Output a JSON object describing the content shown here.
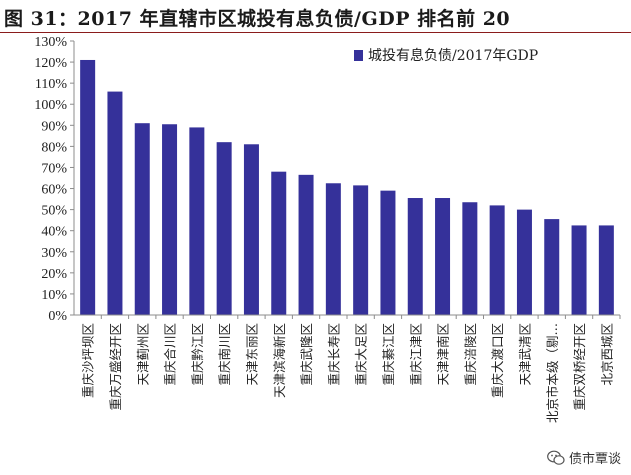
{
  "figure_title": "图 31：2017 年直辖市区城投有息负债/GDP 排名前 20",
  "watermark": {
    "text": "债市覃谈",
    "icon": "wechat-icon"
  },
  "chart_data": {
    "type": "bar",
    "title": "图 31：2017 年直辖市区城投有息负债/GDP 排名前 20",
    "xlabel": "",
    "ylabel": "",
    "ylim": [
      0,
      130
    ],
    "y_step": 10,
    "y_tick_suffix": "%",
    "grid": false,
    "legend_position": "top-right",
    "bar_color": "#35319a",
    "series": [
      {
        "name": "城投有息负债/2017年GDP",
        "values": [
          121,
          106,
          91,
          90.5,
          89,
          82,
          81,
          68,
          66.5,
          62.5,
          61.5,
          59,
          55.5,
          55.5,
          53.5,
          52,
          50,
          45.5,
          42.5,
          42.5
        ]
      }
    ],
    "categories": [
      "重庆沙坪坝区",
      "重庆万盛经开区",
      "天津蓟州区",
      "重庆合川区",
      "重庆黔江区",
      "重庆南川区",
      "天津东丽区",
      "天津滨海新区",
      "重庆武隆区",
      "重庆长寿区",
      "重庆大足区",
      "重庆綦江区",
      "重庆江津区",
      "天津津南区",
      "重庆涪陵区",
      "重庆大渡口区",
      "天津武清区",
      "北京市本级（剔…",
      "重庆双桥经开区",
      "北京西城区"
    ]
  }
}
